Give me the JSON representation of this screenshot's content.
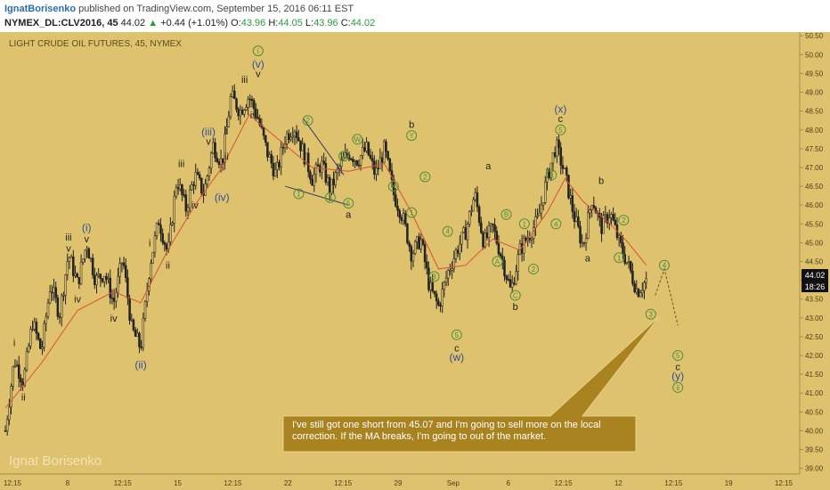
{
  "header": {
    "author": "IgnatBorisenko",
    "published": "published on TradingView.com, September 15, 2016 06:11 EST",
    "symbol": "NYMEX_DL:CLV2016, 45",
    "last": "44.02",
    "change_arrow": "▲",
    "change": "+0.44 (+1.01%)",
    "o_label": "O:",
    "o": "43.96",
    "h_label": "H:",
    "h": "44.05",
    "l_label": "L:",
    "l": "43.96",
    "c_label": "C:",
    "c": "44.02"
  },
  "chart_title": "LIGHT CRUDE OIL FUTURES, 45, NYMEX",
  "watermark": "Ignat Borisenko",
  "price_tag": "44.02",
  "countdown_tag": "18:26",
  "annotation_note": "I've still got one short from 45.07 and I'm going to sell more on the local correction. If the MA breaks, I'm going to out of the market.",
  "colors": {
    "background": "#dfc26e",
    "candles": "#222222",
    "moving_average": "#d9503a",
    "wave_green": "#4f8f3a",
    "wave_blue": "#2c4f9a",
    "note_box": "#a9831f"
  },
  "chart_data": {
    "type": "candlestick",
    "ylim": [
      38.85,
      50.6
    ],
    "y_ticks": [
      "50.50",
      "50.00",
      "49.50",
      "49.00",
      "48.50",
      "48.00",
      "47.50",
      "47.00",
      "46.50",
      "46.00",
      "45.50",
      "45.00",
      "44.50",
      "44.00",
      "43.50",
      "43.00",
      "42.50",
      "42.00",
      "41.50",
      "41.00",
      "40.50",
      "40.00",
      "39.50",
      "39.00"
    ],
    "x_ticks": [
      "12:15",
      "8",
      "12:15",
      "15",
      "12:15",
      "22",
      "12:15",
      "29",
      "Sep",
      "6",
      "12:15",
      "12",
      "12:15",
      "19",
      "12:15"
    ],
    "price_path": [
      {
        "t": 0,
        "p": 40.0
      },
      {
        "t": 1,
        "p": 41.9
      },
      {
        "t": 2,
        "p": 41.3
      },
      {
        "t": 3,
        "p": 42.9
      },
      {
        "t": 4,
        "p": 42.1
      },
      {
        "t": 5,
        "p": 43.9
      },
      {
        "t": 6,
        "p": 43.1
      },
      {
        "t": 7,
        "p": 44.7
      },
      {
        "t": 8,
        "p": 43.9
      },
      {
        "t": 9,
        "p": 45.0
      },
      {
        "t": 10,
        "p": 44.0
      },
      {
        "t": 11,
        "p": 44.2
      },
      {
        "t": 12,
        "p": 43.4
      },
      {
        "t": 13,
        "p": 44.6
      },
      {
        "t": 14,
        "p": 42.7
      },
      {
        "t": 15,
        "p": 42.2
      },
      {
        "t": 16,
        "p": 44.4
      },
      {
        "t": 17,
        "p": 45.6
      },
      {
        "t": 18,
        "p": 44.7
      },
      {
        "t": 19,
        "p": 46.7
      },
      {
        "t": 20,
        "p": 45.9
      },
      {
        "t": 21,
        "p": 46.8
      },
      {
        "t": 22,
        "p": 46.3
      },
      {
        "t": 23,
        "p": 47.6
      },
      {
        "t": 24,
        "p": 47.1
      },
      {
        "t": 25,
        "p": 48.9
      },
      {
        "t": 26,
        "p": 48.5
      },
      {
        "t": 27,
        "p": 48.9
      },
      {
        "t": 28,
        "p": 48.3
      },
      {
        "t": 29,
        "p": 47.4
      },
      {
        "t": 30,
        "p": 46.8
      },
      {
        "t": 31,
        "p": 47.8
      },
      {
        "t": 32,
        "p": 48.1
      },
      {
        "t": 33,
        "p": 47.4
      },
      {
        "t": 34,
        "p": 46.7
      },
      {
        "t": 35,
        "p": 47.1
      },
      {
        "t": 36,
        "p": 46.4
      },
      {
        "t": 37,
        "p": 47.0
      },
      {
        "t": 38,
        "p": 47.4
      },
      {
        "t": 39,
        "p": 47.2
      },
      {
        "t": 40,
        "p": 47.5
      },
      {
        "t": 41,
        "p": 46.8
      },
      {
        "t": 42,
        "p": 47.5
      },
      {
        "t": 43,
        "p": 46.3
      },
      {
        "t": 44,
        "p": 45.7
      },
      {
        "t": 45,
        "p": 44.7
      },
      {
        "t": 46,
        "p": 45.1
      },
      {
        "t": 47,
        "p": 43.8
      },
      {
        "t": 48,
        "p": 43.3
      },
      {
        "t": 49,
        "p": 44.2
      },
      {
        "t": 50,
        "p": 44.8
      },
      {
        "t": 51,
        "p": 45.3
      },
      {
        "t": 52,
        "p": 46.3
      },
      {
        "t": 53,
        "p": 45.0
      },
      {
        "t": 54,
        "p": 45.4
      },
      {
        "t": 55,
        "p": 44.6
      },
      {
        "t": 56,
        "p": 43.7
      },
      {
        "t": 57,
        "p": 44.8
      },
      {
        "t": 58,
        "p": 45.2
      },
      {
        "t": 59,
        "p": 45.6
      },
      {
        "t": 60,
        "p": 46.7
      },
      {
        "t": 61,
        "p": 47.6
      },
      {
        "t": 62,
        "p": 46.8
      },
      {
        "t": 63,
        "p": 45.7
      },
      {
        "t": 64,
        "p": 44.9
      },
      {
        "t": 65,
        "p": 46.2
      },
      {
        "t": 66,
        "p": 45.4
      },
      {
        "t": 67,
        "p": 45.8
      },
      {
        "t": 68,
        "p": 45.0
      },
      {
        "t": 69,
        "p": 44.4
      },
      {
        "t": 70,
        "p": 43.7
      },
      {
        "t": 71,
        "p": 44.0
      }
    ],
    "price_range": [
      39.7,
      49.3
    ],
    "ma_path": [
      {
        "t": 0,
        "p": 40.6
      },
      {
        "t": 4,
        "p": 41.8
      },
      {
        "t": 8,
        "p": 43.2
      },
      {
        "t": 12,
        "p": 43.7
      },
      {
        "t": 15,
        "p": 43.4
      },
      {
        "t": 18,
        "p": 44.8
      },
      {
        "t": 21,
        "p": 46.0
      },
      {
        "t": 24,
        "p": 47.0
      },
      {
        "t": 27,
        "p": 48.4
      },
      {
        "t": 30,
        "p": 47.8
      },
      {
        "t": 34,
        "p": 47.0
      },
      {
        "t": 38,
        "p": 46.9
      },
      {
        "t": 42,
        "p": 47.1
      },
      {
        "t": 45,
        "p": 45.8
      },
      {
        "t": 48,
        "p": 44.3
      },
      {
        "t": 51,
        "p": 44.4
      },
      {
        "t": 54,
        "p": 45.1
      },
      {
        "t": 57,
        "p": 44.8
      },
      {
        "t": 60,
        "p": 45.8
      },
      {
        "t": 62,
        "p": 46.7
      },
      {
        "t": 64,
        "p": 46.1
      },
      {
        "t": 67,
        "p": 45.5
      },
      {
        "t": 69,
        "p": 45.0
      },
      {
        "t": 71,
        "p": 44.4
      }
    ],
    "wave_labels": [
      {
        "text": "i",
        "t": 1.0,
        "p": 42.35,
        "style": "plain"
      },
      {
        "text": "ii",
        "t": 2.0,
        "p": 40.9,
        "style": "plain"
      },
      {
        "text": "iii",
        "t": 7.0,
        "p": 45.15,
        "style": "plain"
      },
      {
        "text": "v",
        "t": 7.0,
        "p": 44.85,
        "style": "plain"
      },
      {
        "text": "iv",
        "t": 8.0,
        "p": 43.5,
        "style": "plain"
      },
      {
        "text": "(i)",
        "t": 9.0,
        "p": 45.4,
        "style": "blue"
      },
      {
        "text": "v",
        "t": 9.0,
        "p": 45.1,
        "style": "plain"
      },
      {
        "text": "iv",
        "t": 12.0,
        "p": 43.0,
        "style": "plain"
      },
      {
        "text": "(ii)",
        "t": 15.0,
        "p": 41.75,
        "style": "blue"
      },
      {
        "text": "i",
        "t": 16.0,
        "p": 45.0,
        "style": "plain"
      },
      {
        "text": "ii",
        "t": 18.0,
        "p": 44.4,
        "style": "plain"
      },
      {
        "text": "iii",
        "t": 19.5,
        "p": 47.1,
        "style": "plain"
      },
      {
        "text": "iv",
        "t": 21.0,
        "p": 46.0,
        "style": "plain"
      },
      {
        "text": "(iii)",
        "t": 22.5,
        "p": 47.95,
        "style": "blue"
      },
      {
        "text": "v",
        "t": 22.5,
        "p": 47.7,
        "style": "plain"
      },
      {
        "text": "i",
        "t": 24.5,
        "p": 48.0,
        "style": "plain"
      },
      {
        "text": "ii",
        "t": 24.5,
        "p": 47.3,
        "style": "plain"
      },
      {
        "text": "(iv)",
        "t": 24.0,
        "p": 46.2,
        "style": "blue"
      },
      {
        "text": "iii",
        "t": 26.5,
        "p": 49.35,
        "style": "plain"
      },
      {
        "text": "iv",
        "t": 27.5,
        "p": 48.4,
        "style": "plain"
      },
      {
        "text": "i",
        "t": 28.0,
        "p": 50.1,
        "style": "circle-green"
      },
      {
        "text": "(v)",
        "t": 28.0,
        "p": 49.75,
        "style": "blue"
      },
      {
        "text": "v",
        "t": 28.0,
        "p": 49.5,
        "style": "plain"
      },
      {
        "text": "2",
        "t": 33.5,
        "p": 48.25,
        "style": "circle-green"
      },
      {
        "text": "1",
        "t": 32.5,
        "p": 46.3,
        "style": "circle-green"
      },
      {
        "text": "3",
        "t": 36.0,
        "p": 46.2,
        "style": "circle-green"
      },
      {
        "text": "4",
        "t": 37.5,
        "p": 47.3,
        "style": "circle-green"
      },
      {
        "text": "5",
        "t": 38.0,
        "p": 46.05,
        "style": "circle-green"
      },
      {
        "text": "a",
        "t": 38.0,
        "p": 45.75,
        "style": "plain"
      },
      {
        "text": "W",
        "t": 39.0,
        "p": 47.75,
        "style": "circle-green"
      },
      {
        "text": "X",
        "t": 43.0,
        "p": 46.5,
        "style": "circle-green"
      },
      {
        "text": "b",
        "t": 45.0,
        "p": 48.15,
        "style": "plain"
      },
      {
        "text": "Y",
        "t": 45.0,
        "p": 47.85,
        "style": "circle-green"
      },
      {
        "text": "1",
        "t": 45.0,
        "p": 45.8,
        "style": "circle-green"
      },
      {
        "text": "2",
        "t": 46.5,
        "p": 46.75,
        "style": "circle-green"
      },
      {
        "text": "3",
        "t": 47.5,
        "p": 44.1,
        "style": "circle-green"
      },
      {
        "text": "4",
        "t": 49.0,
        "p": 45.3,
        "style": "circle-green"
      },
      {
        "text": "5",
        "t": 50.0,
        "p": 42.55,
        "style": "circle-green"
      },
      {
        "text": "c",
        "t": 50.0,
        "p": 42.2,
        "style": "plain"
      },
      {
        "text": "(w)",
        "t": 50.0,
        "p": 41.95,
        "style": "blue"
      },
      {
        "text": "a",
        "t": 53.5,
        "p": 47.05,
        "style": "plain"
      },
      {
        "text": "A",
        "t": 54.5,
        "p": 44.5,
        "style": "circle-green"
      },
      {
        "text": "B",
        "t": 55.5,
        "p": 45.75,
        "style": "circle-green"
      },
      {
        "text": "C",
        "t": 56.5,
        "p": 43.6,
        "style": "circle-green"
      },
      {
        "text": "b",
        "t": 56.5,
        "p": 43.3,
        "style": "plain"
      },
      {
        "text": "1",
        "t": 57.5,
        "p": 45.5,
        "style": "circle-green"
      },
      {
        "text": "2",
        "t": 58.5,
        "p": 44.3,
        "style": "circle-green"
      },
      {
        "text": "3",
        "t": 60.5,
        "p": 46.8,
        "style": "circle-green"
      },
      {
        "text": "4",
        "t": 61.0,
        "p": 45.5,
        "style": "circle-green"
      },
      {
        "text": "(x)",
        "t": 61.5,
        "p": 48.55,
        "style": "blue"
      },
      {
        "text": "c",
        "t": 61.5,
        "p": 48.3,
        "style": "plain"
      },
      {
        "text": "5",
        "t": 61.5,
        "p": 48.0,
        "style": "circle-green"
      },
      {
        "text": "b",
        "t": 66.0,
        "p": 46.65,
        "style": "plain"
      },
      {
        "text": "a",
        "t": 64.5,
        "p": 44.6,
        "style": "plain"
      },
      {
        "text": "1",
        "t": 68.0,
        "p": 44.6,
        "style": "circle-green"
      },
      {
        "text": "2",
        "t": 68.5,
        "p": 45.6,
        "style": "circle-green"
      },
      {
        "text": "3",
        "t": 71.5,
        "p": 43.1,
        "style": "circle-green"
      },
      {
        "text": "4",
        "t": 73.0,
        "p": 44.4,
        "style": "circle-green"
      },
      {
        "text": "5",
        "t": 74.5,
        "p": 42.0,
        "style": "circle-green"
      },
      {
        "text": "c",
        "t": 74.5,
        "p": 41.7,
        "style": "plain"
      },
      {
        "text": "(y)",
        "t": 74.5,
        "p": 41.45,
        "style": "blue"
      },
      {
        "text": "ii",
        "t": 74.5,
        "p": 41.15,
        "style": "circle-green"
      }
    ],
    "triangle_lines": [
      {
        "from": {
          "t": 33.0,
          "p": 48.3
        },
        "to": {
          "t": 37.5,
          "p": 46.8
        }
      },
      {
        "from": {
          "t": 31.0,
          "p": 46.5
        },
        "to": {
          "t": 38.0,
          "p": 46.0
        }
      }
    ],
    "forecast_path": [
      {
        "t": 72.0,
        "p": 43.6
      },
      {
        "t": 73.0,
        "p": 44.3
      },
      {
        "t": 74.5,
        "p": 42.8
      }
    ],
    "arrow_target": {
      "t": 72.5,
      "p": 43.05
    }
  }
}
